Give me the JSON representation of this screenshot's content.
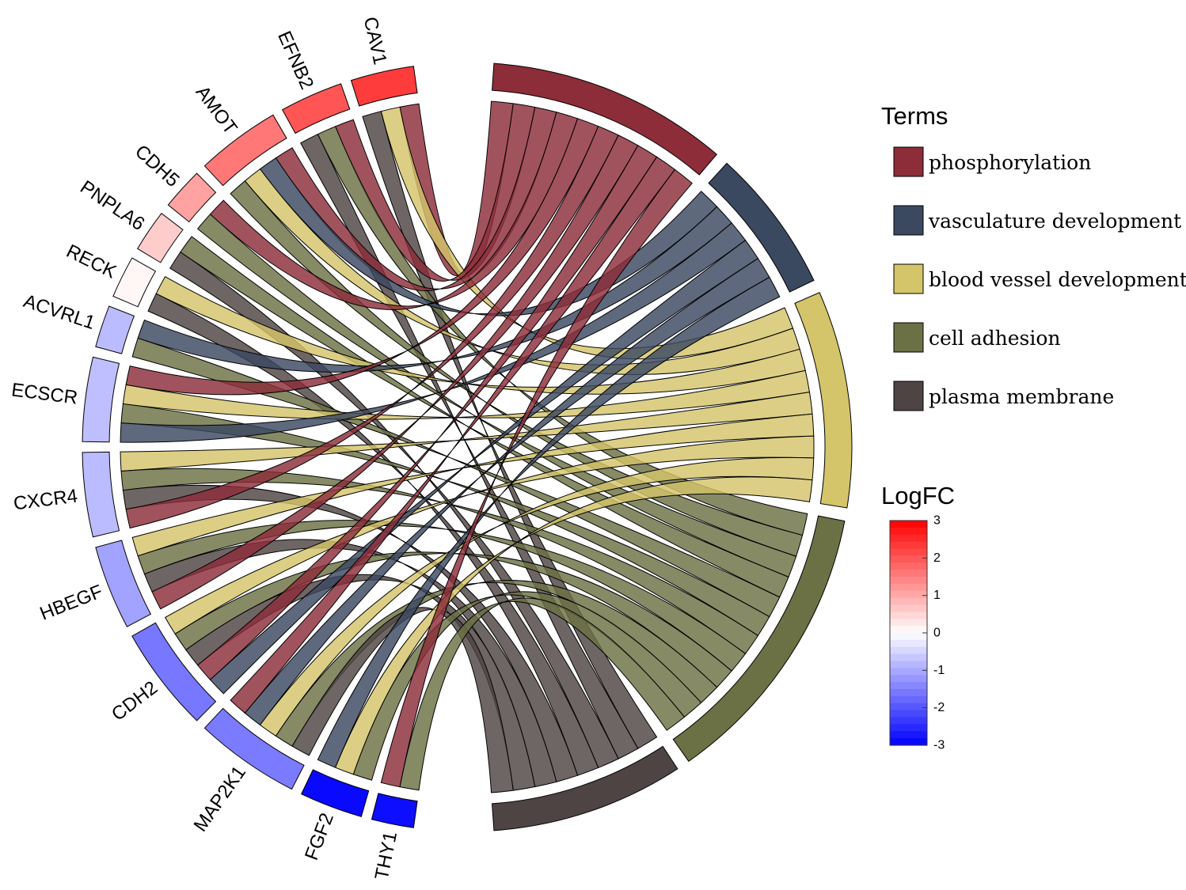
{
  "chart_data": {
    "type": "chord",
    "genes": [
      {
        "name": "CAV1",
        "logFC": 2.3,
        "terms": [
          "phosphorylation",
          "blood vessel development",
          "plasma membrane"
        ]
      },
      {
        "name": "EFNB2",
        "logFC": 2.0,
        "terms": [
          "phosphorylation",
          "cell adhesion",
          "plasma membrane"
        ]
      },
      {
        "name": "AMOT",
        "logFC": 1.6,
        "terms": [
          "phosphorylation",
          "vasculature development",
          "blood vessel development",
          "cell adhesion"
        ]
      },
      {
        "name": "CDH5",
        "logFC": 1.1,
        "terms": [
          "phosphorylation",
          "cell adhesion"
        ]
      },
      {
        "name": "PNPLA6",
        "logFC": 0.6,
        "terms": [
          "cell adhesion",
          "plasma membrane"
        ]
      },
      {
        "name": "RECK",
        "logFC": 0.1,
        "terms": [
          "blood vessel development",
          "plasma membrane"
        ]
      },
      {
        "name": "ACVRL1",
        "logFC": -0.8,
        "terms": [
          "vasculature development",
          "cell adhesion"
        ]
      },
      {
        "name": "ECSCR",
        "logFC": -0.75,
        "terms": [
          "phosphorylation",
          "blood vessel development",
          "cell adhesion",
          "vasculature development"
        ]
      },
      {
        "name": "CXCR4",
        "logFC": -0.8,
        "terms": [
          "blood vessel development",
          "cell adhesion",
          "plasma membrane",
          "phosphorylation"
        ]
      },
      {
        "name": "HBEGF",
        "logFC": -1.1,
        "terms": [
          "blood vessel development",
          "cell adhesion",
          "plasma membrane",
          "phosphorylation"
        ]
      },
      {
        "name": "CDH2",
        "logFC": -1.6,
        "terms": [
          "blood vessel development",
          "cell adhesion",
          "plasma membrane",
          "phosphorylation",
          "vasculature development"
        ]
      },
      {
        "name": "MAP2K1",
        "logFC": -1.55,
        "terms": [
          "phosphorylation",
          "vasculature development",
          "blood vessel development",
          "cell adhesion",
          "plasma membrane"
        ]
      },
      {
        "name": "FGF2",
        "logFC": -2.9,
        "terms": [
          "vasculature development",
          "blood vessel development",
          "cell adhesion"
        ]
      },
      {
        "name": "THY1",
        "logFC": -2.85,
        "terms": [
          "phosphorylation",
          "cell adhesion"
        ]
      }
    ],
    "terms": [
      {
        "name": "phosphorylation",
        "color": "#8c2d39"
      },
      {
        "name": "vasculature development",
        "color": "#3a4860"
      },
      {
        "name": "blood vessel development",
        "color": "#d4c56a"
      },
      {
        "name": "cell adhesion",
        "color": "#6b7144"
      },
      {
        "name": "plasma membrane",
        "color": "#4e4443"
      }
    ],
    "legend_title": "Terms",
    "colorbar": {
      "title": "LogFC",
      "range": [
        -3,
        3
      ],
      "ticks": [
        3,
        2,
        1,
        0,
        -1,
        -2,
        -3
      ],
      "colors": {
        "low": "#0000ff",
        "mid": "#ffffff",
        "high": "#ff0000"
      }
    }
  }
}
